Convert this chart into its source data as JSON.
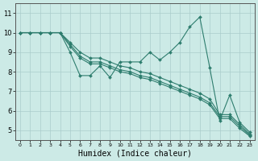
{
  "xlabel": "Humidex (Indice chaleur)",
  "xlim": [
    -0.5,
    23.5
  ],
  "ylim": [
    4.5,
    11.5
  ],
  "xticks": [
    0,
    1,
    2,
    3,
    4,
    5,
    6,
    7,
    8,
    9,
    10,
    11,
    12,
    13,
    14,
    15,
    16,
    17,
    18,
    19,
    20,
    21,
    22,
    23
  ],
  "yticks": [
    5,
    6,
    7,
    8,
    9,
    10,
    11
  ],
  "background_color": "#cceae6",
  "grid_color": "#aacccc",
  "line_color": "#2e7d6e",
  "series": [
    {
      "x": [
        0,
        1,
        2,
        3,
        4,
        5,
        6,
        7,
        8,
        9,
        10,
        11,
        12,
        13,
        14,
        15,
        16,
        17,
        18,
        19,
        20,
        21,
        22,
        23
      ],
      "y": [
        10,
        10,
        10,
        10,
        10,
        9.0,
        7.8,
        7.8,
        8.3,
        7.7,
        8.5,
        8.5,
        8.5,
        9.0,
        8.6,
        9.0,
        9.5,
        10.3,
        10.8,
        8.2,
        5.5,
        6.8,
        5.4,
        4.9
      ]
    },
    {
      "x": [
        0,
        1,
        2,
        3,
        4,
        5,
        6,
        7,
        8,
        9,
        10,
        11,
        12,
        13,
        14,
        15,
        16,
        17,
        18,
        19,
        20,
        21,
        22,
        23
      ],
      "y": [
        10,
        10,
        10,
        10,
        10,
        9.5,
        9.0,
        8.7,
        8.7,
        8.5,
        8.3,
        8.2,
        8.0,
        7.9,
        7.7,
        7.5,
        7.3,
        7.1,
        6.9,
        6.6,
        5.8,
        5.8,
        5.3,
        4.8
      ]
    },
    {
      "x": [
        0,
        1,
        2,
        3,
        4,
        5,
        6,
        7,
        8,
        9,
        10,
        11,
        12,
        13,
        14,
        15,
        16,
        17,
        18,
        19,
        20,
        21,
        22,
        23
      ],
      "y": [
        10,
        10,
        10,
        10,
        10,
        9.4,
        8.8,
        8.5,
        8.5,
        8.3,
        8.1,
        8.0,
        7.8,
        7.7,
        7.5,
        7.3,
        7.1,
        6.9,
        6.7,
        6.4,
        5.7,
        5.7,
        5.2,
        4.75
      ]
    },
    {
      "x": [
        0,
        1,
        2,
        3,
        4,
        5,
        6,
        7,
        8,
        9,
        10,
        11,
        12,
        13,
        14,
        15,
        16,
        17,
        18,
        19,
        20,
        21,
        22,
        23
      ],
      "y": [
        10,
        10,
        10,
        10,
        10,
        9.3,
        8.7,
        8.4,
        8.4,
        8.2,
        8.0,
        7.9,
        7.7,
        7.6,
        7.4,
        7.2,
        7.0,
        6.8,
        6.6,
        6.3,
        5.6,
        5.6,
        5.1,
        4.7
      ]
    }
  ]
}
